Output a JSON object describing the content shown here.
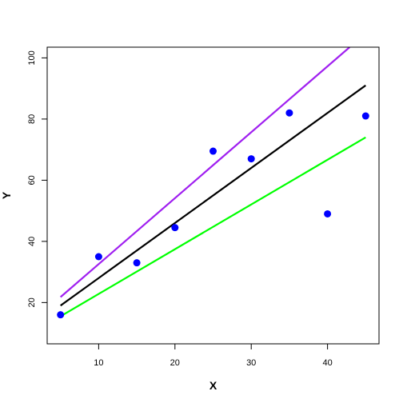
{
  "chart_data": {
    "type": "scatter",
    "title": "",
    "xlabel": "X",
    "ylabel": "Y",
    "xlim": [
      3.25,
      46.75
    ],
    "ylim": [
      6.5,
      103.5
    ],
    "x_ticks": [
      10,
      20,
      30,
      40
    ],
    "y_ticks": [
      20,
      40,
      60,
      80,
      100
    ],
    "grid": false,
    "legend": "none",
    "points": {
      "color": "#0000ff",
      "x": [
        5,
        10,
        15,
        20,
        25,
        30,
        35,
        40,
        45
      ],
      "y": [
        16,
        35,
        33,
        44.5,
        69.5,
        67,
        82,
        49,
        81
      ]
    },
    "lines": [
      {
        "color": "#a020f0",
        "x": [
          5,
          42.9
        ],
        "y": [
          21.8,
          103.5
        ]
      },
      {
        "color": "#000000",
        "x": [
          5,
          45
        ],
        "y": [
          19,
          91
        ]
      },
      {
        "color": "#00ff00",
        "x": [
          5,
          45
        ],
        "y": [
          15.5,
          74
        ]
      }
    ]
  }
}
